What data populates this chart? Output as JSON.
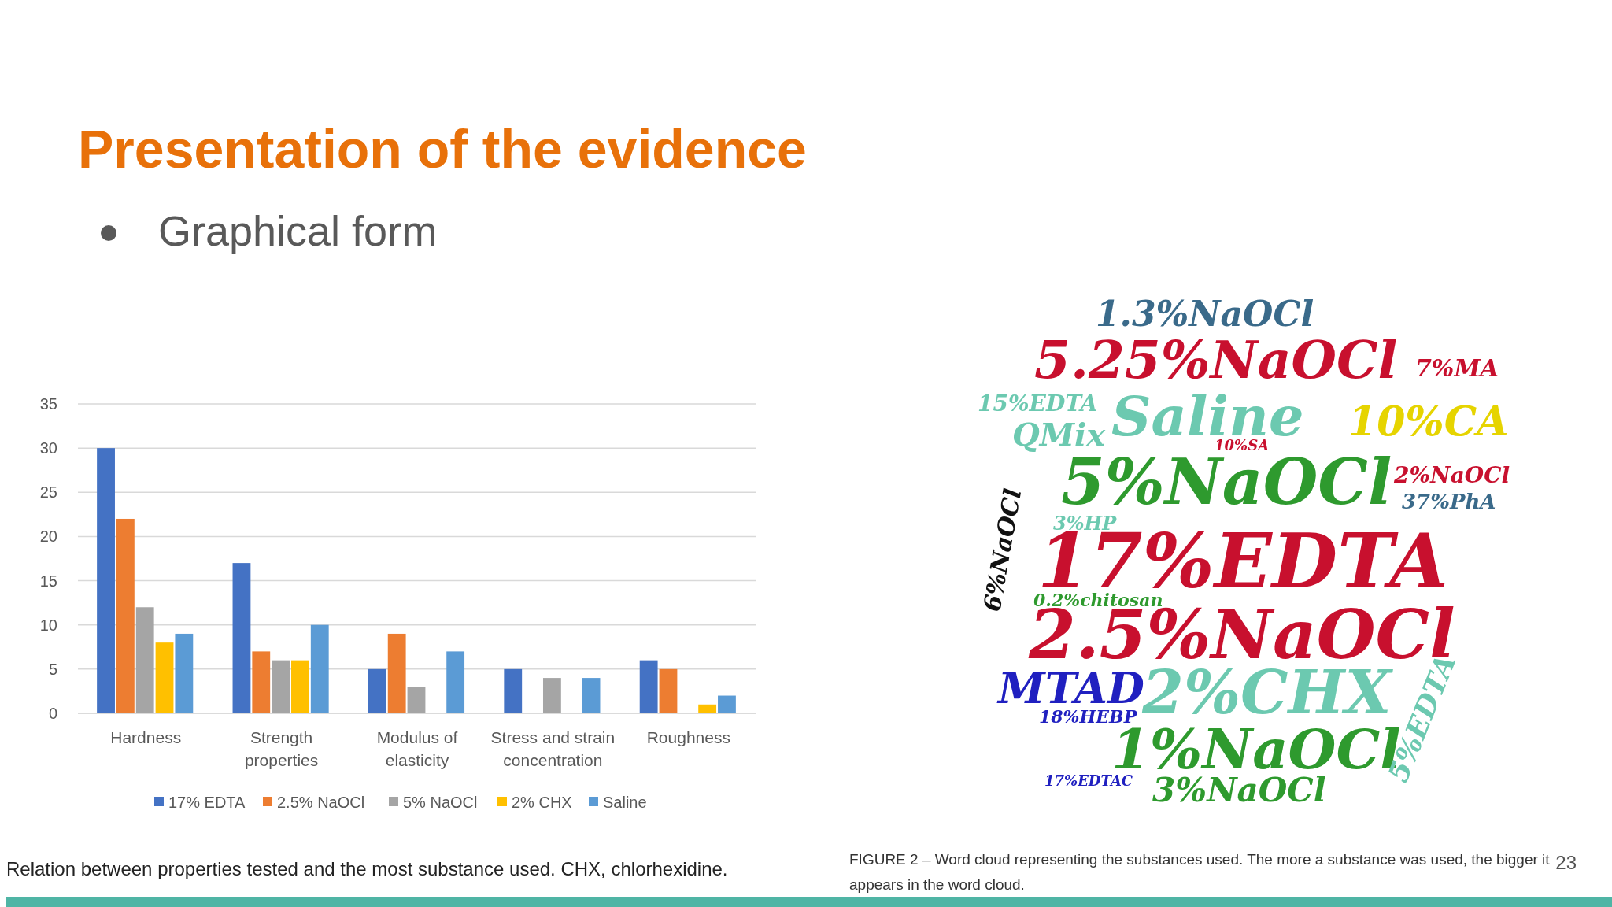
{
  "chart_data": [
    {
      "type": "bar",
      "title": "Presentation of the evidence",
      "subtitle": "Graphical form",
      "categories": [
        "Hardness",
        "Strength properties",
        "Modulus of elasticity",
        "Stress and strain concentration",
        "Roughness"
      ],
      "series": [
        {
          "name": "17% EDTA",
          "color": "#4472c4",
          "values": [
            30,
            17,
            5,
            5,
            6
          ]
        },
        {
          "name": "2.5% NaOCl",
          "color": "#ed7d31",
          "values": [
            22,
            7,
            9,
            null,
            5
          ]
        },
        {
          "name": "5% NaOCl",
          "color": "#a5a5a5",
          "values": [
            12,
            6,
            3,
            4,
            null
          ]
        },
        {
          "name": "2% CHX",
          "color": "#ffc000",
          "values": [
            8,
            6,
            null,
            null,
            1
          ]
        },
        {
          "name": "Saline",
          "color": "#5b9bd5",
          "values": [
            9,
            10,
            7,
            4,
            2
          ]
        }
      ],
      "ylim": [
        0,
        35
      ],
      "yticks": [
        0,
        5,
        10,
        15,
        20,
        25,
        30,
        35
      ],
      "grid": "y",
      "legend": "bottom",
      "annotations": [
        "Relation between properties tested and the most substance used. CHX, chlorhexidine."
      ]
    },
    {
      "type": "other",
      "annotations": [
        "1.3%NaOCl",
        "5.25%NaOCl",
        "Saline",
        "10%CA",
        "QMix",
        "15%EDTA",
        "7%MA",
        "5%NaOCl",
        "2%NaOCl",
        "37%PhA",
        "17%EDTA",
        "2.5%NaOCl",
        "0.2%chitosan",
        "MTAD",
        "2%CHX",
        "18%HEBP",
        "1%NaOCl",
        "3%NaOCl",
        "17%EDTAC",
        "3%HP",
        "10%SA",
        "6%NaOCl",
        "5%EDTA",
        "FIGURE 2 – Word cloud representing the substances used. The more a substance was used, the bigger it appears in the word cloud.",
        "23"
      ]
    }
  ]
}
